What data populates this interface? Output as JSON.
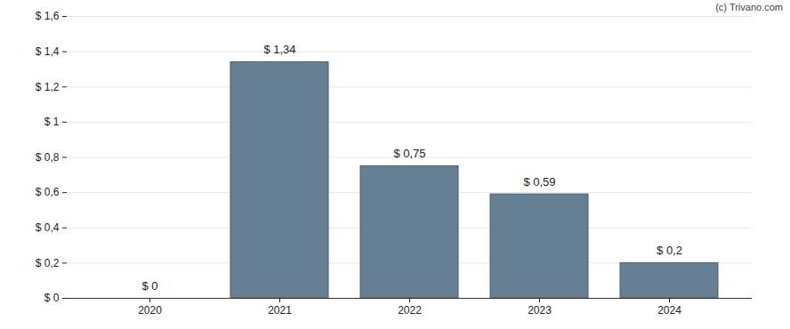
{
  "chart_data": {
    "type": "bar",
    "categories": [
      "2020",
      "2021",
      "2022",
      "2023",
      "2024"
    ],
    "values": [
      0,
      1.34,
      0.75,
      0.59,
      0.2
    ],
    "value_labels": [
      "$ 0",
      "$ 1,34",
      "$ 0,75",
      "$ 0,59",
      "$ 0,2"
    ],
    "data_labels": true,
    "color": "#667f92",
    "ylim": [
      0,
      1.6
    ],
    "yticks": [
      {
        "value": 0,
        "label": "$ 0"
      },
      {
        "value": 0.2,
        "label": "$ 0,2"
      },
      {
        "value": 0.4,
        "label": "$ 0,4"
      },
      {
        "value": 0.6,
        "label": "$ 0,6"
      },
      {
        "value": 0.8,
        "label": "$ 0,8"
      },
      {
        "value": 1,
        "label": "$ 1"
      },
      {
        "value": 1.2,
        "label": "$ 1,2"
      },
      {
        "value": 1.4,
        "label": "$ 1,4"
      },
      {
        "value": 1.6,
        "label": "$ 1,6"
      }
    ],
    "grid": true,
    "annotation": "(c) Trivano.com"
  }
}
